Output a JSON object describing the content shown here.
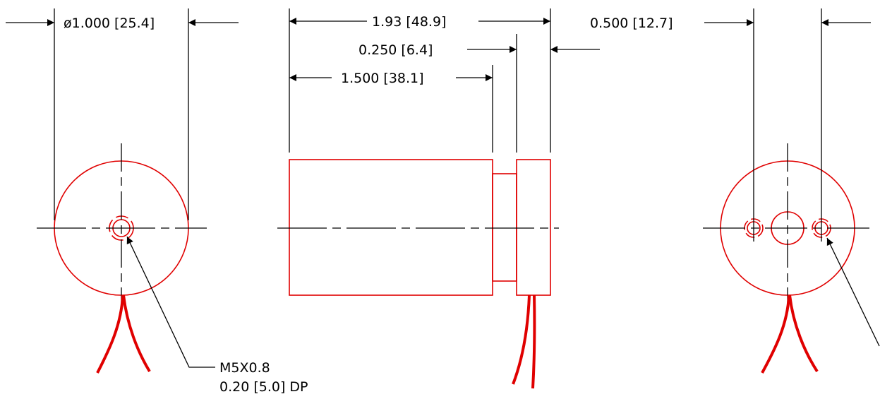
{
  "colors": {
    "part": "#e00000",
    "dimension": "#000000",
    "background": "#ffffff"
  },
  "dimensions": {
    "diameter": "ø1.000 [25.4]",
    "overall_length": "1.93 [48.9]",
    "flange_thickness": "0.250 [6.4]",
    "body_length": "1.500 [38.1]",
    "hole_spacing": "0.500 [12.7]"
  },
  "callout": {
    "thread": "M5X0.8",
    "depth": "0.20 [5.0] DP"
  }
}
